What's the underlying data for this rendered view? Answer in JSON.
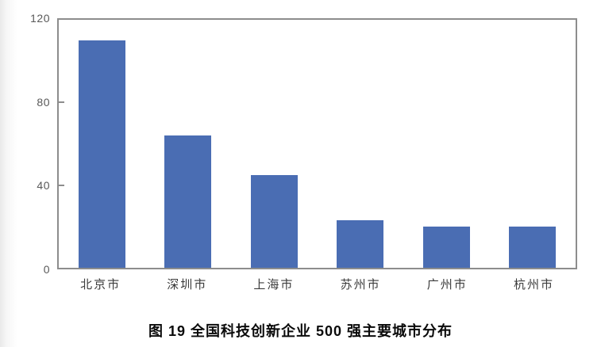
{
  "chart_data": {
    "type": "bar",
    "categories": [
      "北京市",
      "深圳市",
      "上海市",
      "苏州市",
      "广州市",
      "杭州市"
    ],
    "values": [
      110,
      64,
      45,
      23,
      20,
      20
    ],
    "title": "图 19 全国科技创新企业 500 强主要城市分布",
    "xlabel": "",
    "ylabel": "",
    "ylim": [
      0,
      120
    ],
    "y_ticks": [
      0,
      40,
      80,
      120
    ],
    "grid": false,
    "legend": "none",
    "bar_color": "#4a6db3",
    "axis_color": "#8d8d8d",
    "tick_label_color": "#595959"
  },
  "caption": "图 19 全国科技创新企业 500 强主要城市分布"
}
